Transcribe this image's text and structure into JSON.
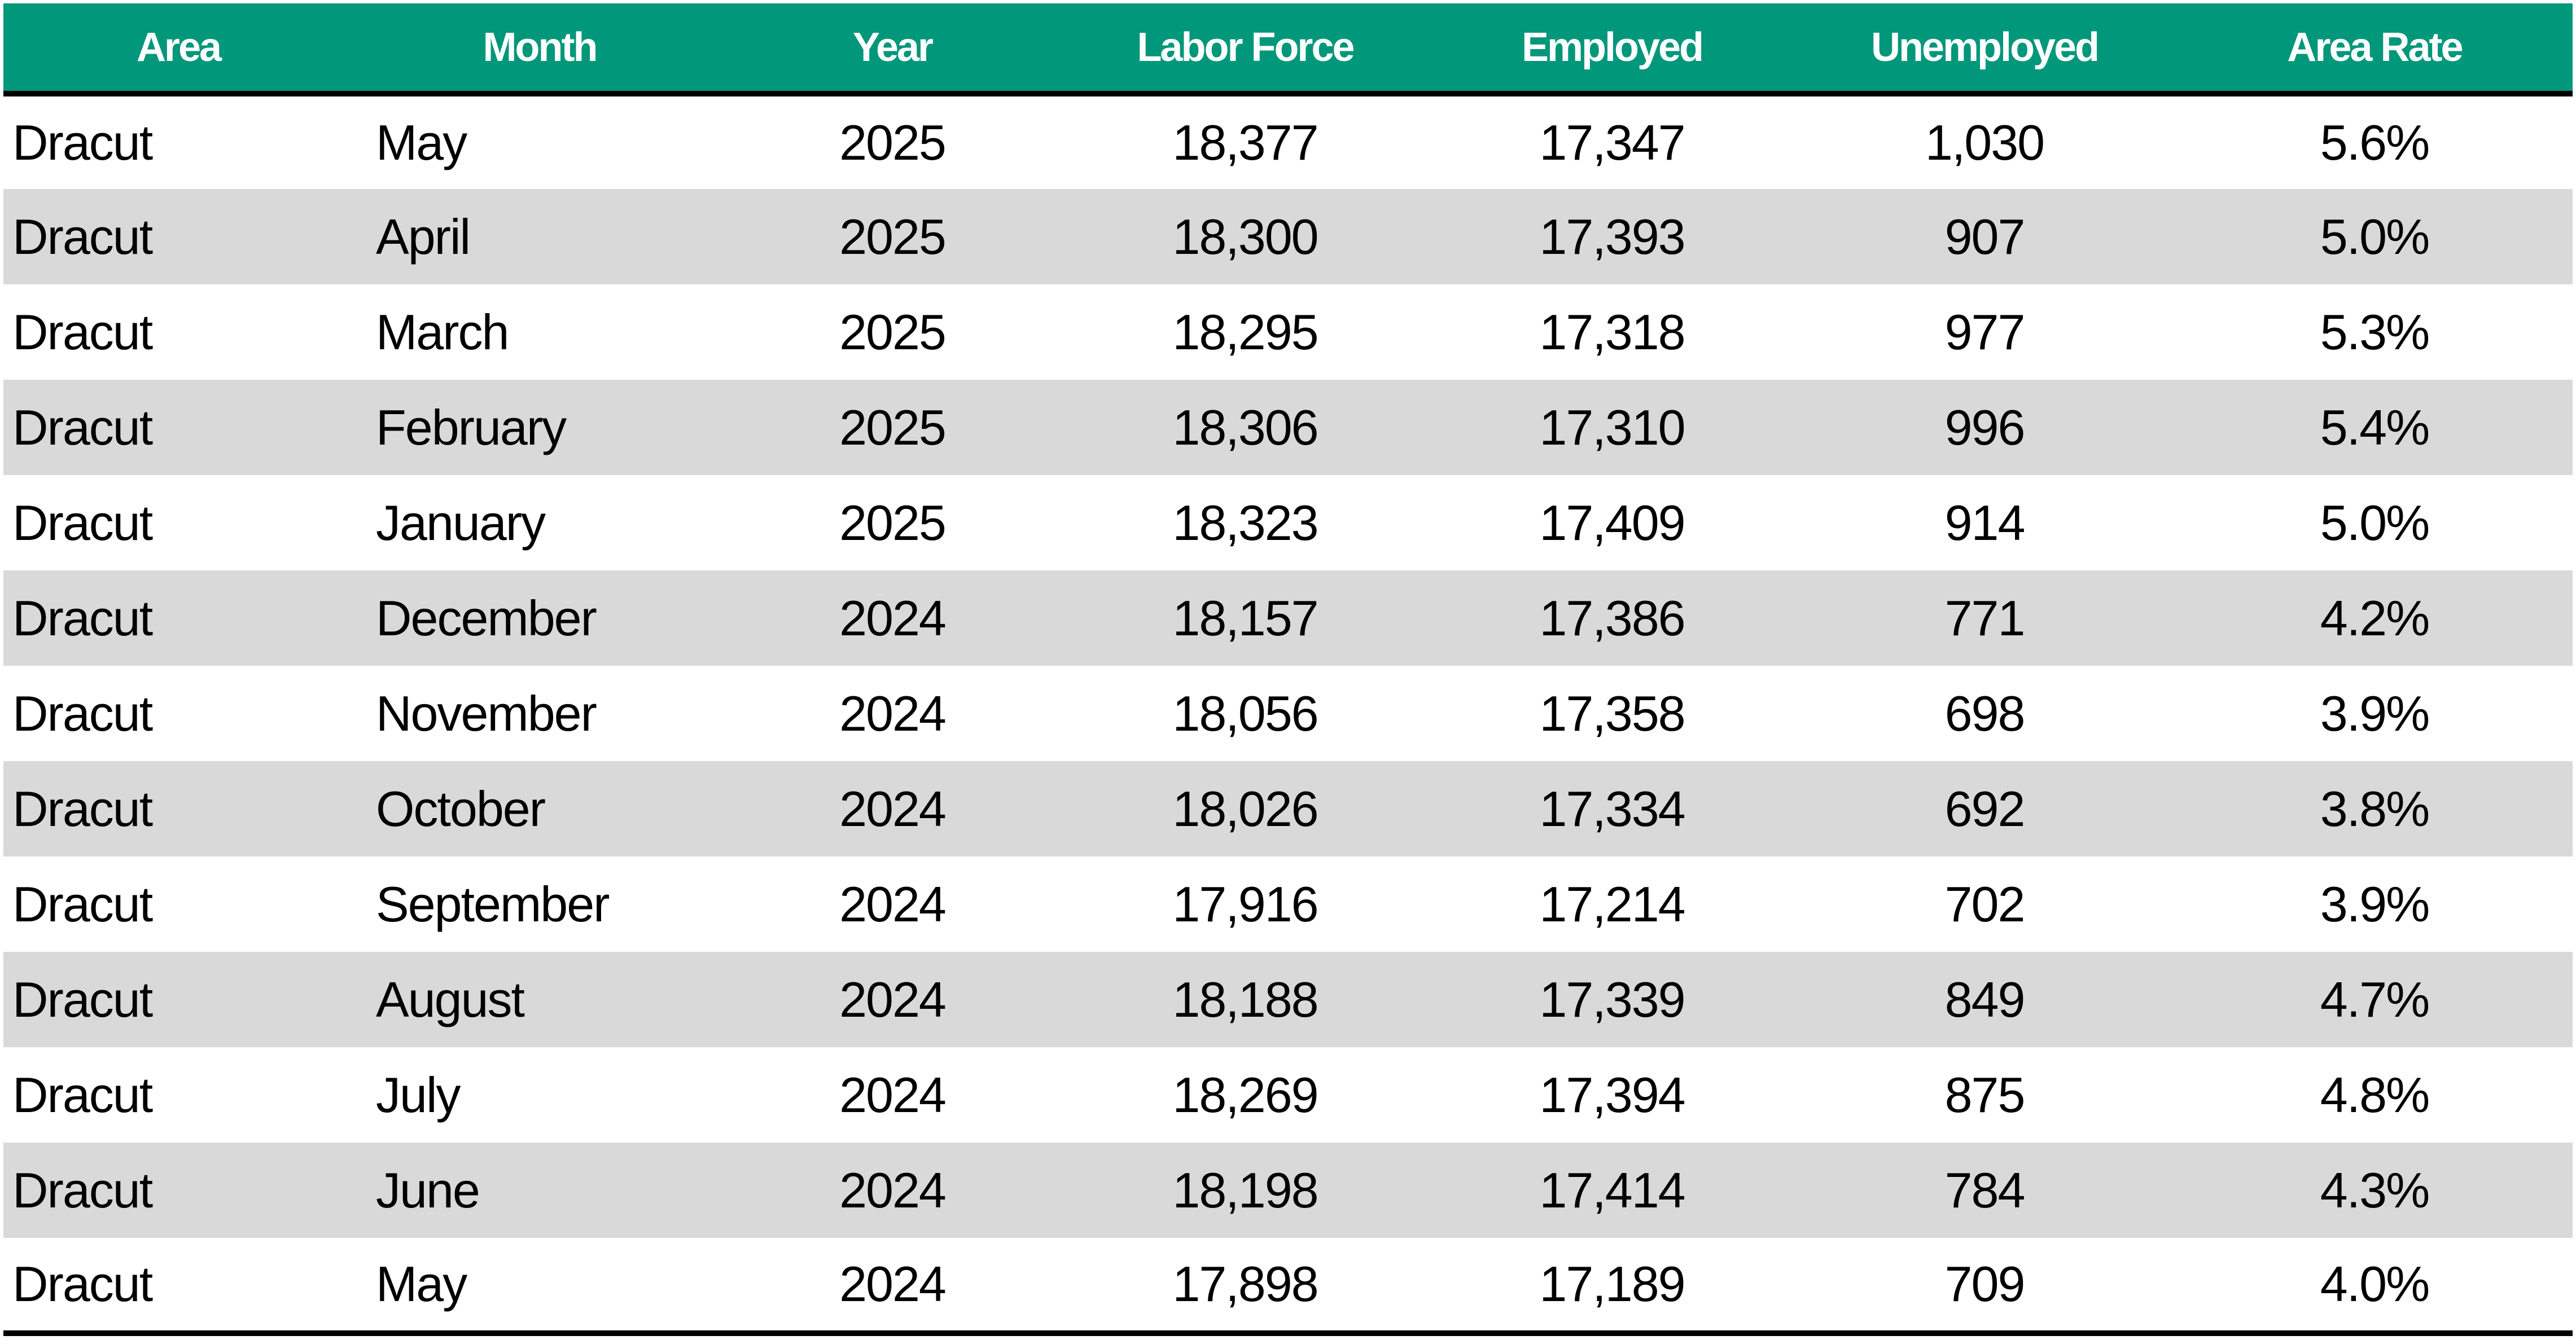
{
  "colors": {
    "header_bg": "#00977a",
    "header_text": "#ffffff",
    "stripe": "#d9d9d9",
    "rule": "#000000"
  },
  "chart_data": {
    "type": "table",
    "columns": [
      "Area",
      "Month",
      "Year",
      "Labor Force",
      "Employed",
      "Unemployed",
      "Area Rate"
    ],
    "rows": [
      [
        "Dracut",
        "May",
        "2025",
        "18,377",
        "17,347",
        "1,030",
        "5.6%"
      ],
      [
        "Dracut",
        "April",
        "2025",
        "18,300",
        "17,393",
        "907",
        "5.0%"
      ],
      [
        "Dracut",
        "March",
        "2025",
        "18,295",
        "17,318",
        "977",
        "5.3%"
      ],
      [
        "Dracut",
        "February",
        "2025",
        "18,306",
        "17,310",
        "996",
        "5.4%"
      ],
      [
        "Dracut",
        "January",
        "2025",
        "18,323",
        "17,409",
        "914",
        "5.0%"
      ],
      [
        "Dracut",
        "December",
        "2024",
        "18,157",
        "17,386",
        "771",
        "4.2%"
      ],
      [
        "Dracut",
        "November",
        "2024",
        "18,056",
        "17,358",
        "698",
        "3.9%"
      ],
      [
        "Dracut",
        "October",
        "2024",
        "18,026",
        "17,334",
        "692",
        "3.8%"
      ],
      [
        "Dracut",
        "September",
        "2024",
        "17,916",
        "17,214",
        "702",
        "3.9%"
      ],
      [
        "Dracut",
        "August",
        "2024",
        "18,188",
        "17,339",
        "849",
        "4.7%"
      ],
      [
        "Dracut",
        "July",
        "2024",
        "18,269",
        "17,394",
        "875",
        "4.8%"
      ],
      [
        "Dracut",
        "June",
        "2024",
        "18,198",
        "17,414",
        "784",
        "4.3%"
      ],
      [
        "Dracut",
        "May",
        "2024",
        "17,898",
        "17,189",
        "709",
        "4.0%"
      ]
    ]
  }
}
